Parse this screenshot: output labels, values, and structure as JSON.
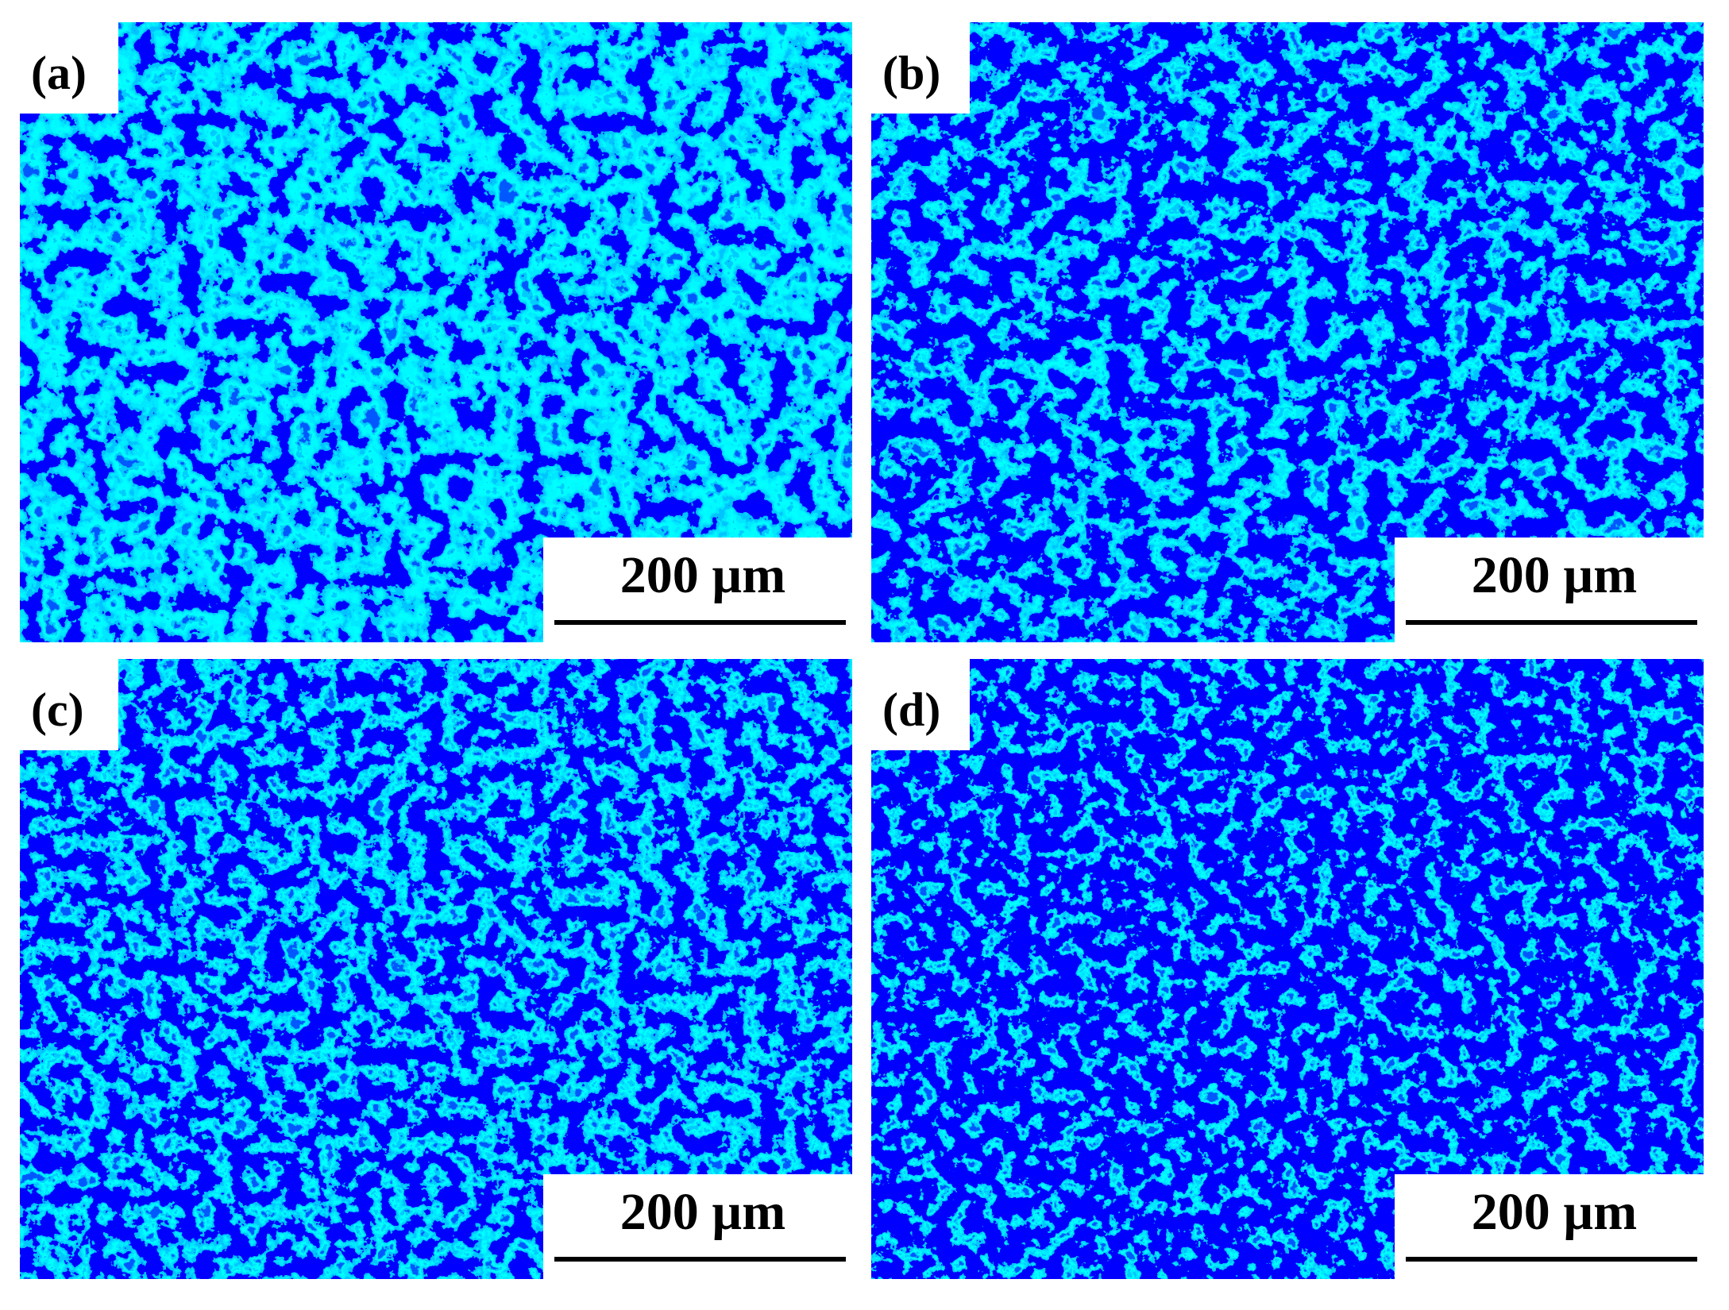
{
  "panels": [
    {
      "label": "(a)",
      "scale_bar": "200 µm"
    },
    {
      "label": "(b)",
      "scale_bar": "200 µm"
    },
    {
      "label": "(c)",
      "scale_bar": "200 µm"
    },
    {
      "label": "(d)",
      "scale_bar": "200 µm"
    }
  ]
}
